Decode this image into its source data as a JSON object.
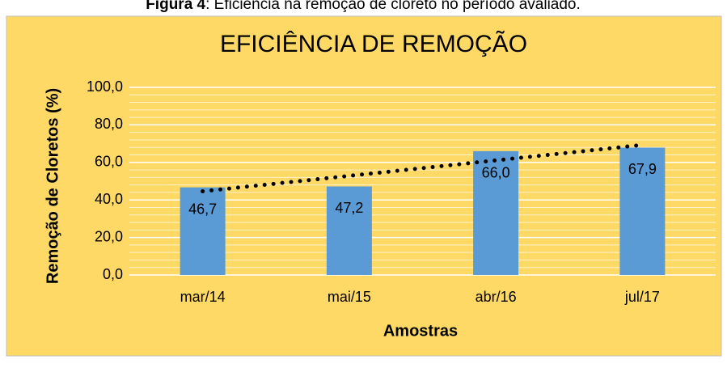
{
  "caption_label": "Figura 4",
  "caption_text": ": Eficiência na remoção de cloreto no período avaliado.",
  "chart_data": {
    "type": "bar",
    "title": "EFICIÊNCIA DE REMOÇÃO",
    "x_label": "Amostras",
    "y_label": "Remoção de Cloretos (%)",
    "categories": [
      "mar/14",
      "mai/15",
      "abr/16",
      "jul/17"
    ],
    "values": [
      46.7,
      47.2,
      66.0,
      67.9
    ],
    "value_labels": [
      "46,7",
      "47,2",
      "66,0",
      "67,9"
    ],
    "color": "#5b9bd5",
    "background": "#ffd966",
    "ylim": [
      0,
      100
    ],
    "yticks": [
      {
        "value": 0,
        "label": "0,0"
      },
      {
        "value": 20,
        "label": "20,0"
      },
      {
        "value": 40,
        "label": "40,0"
      },
      {
        "value": 60,
        "label": "60,0"
      },
      {
        "value": 80,
        "label": "80,0"
      },
      {
        "value": 100,
        "label": "100,0"
      }
    ],
    "grid": true,
    "trendline": "linear"
  }
}
